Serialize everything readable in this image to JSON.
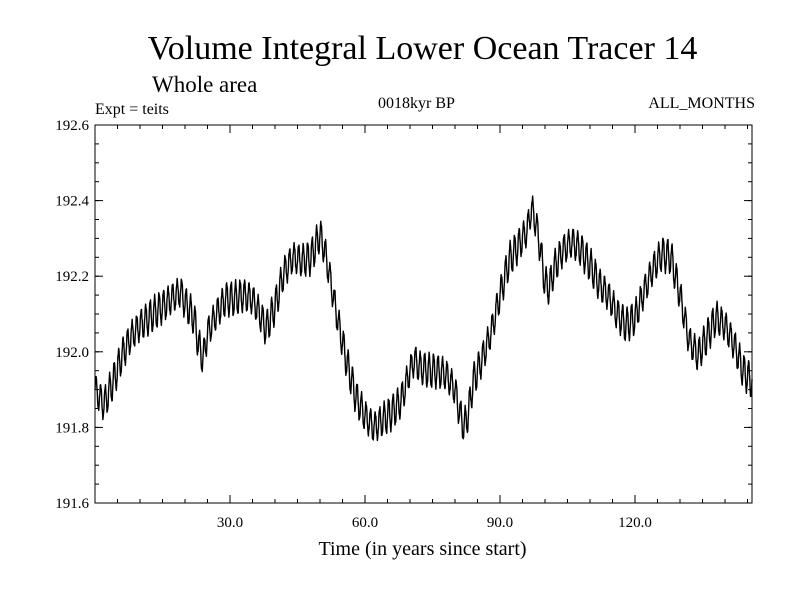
{
  "chart_data": {
    "type": "line",
    "title": "Volume Integral Lower Ocean Tracer 14",
    "subtitle": "Whole area",
    "experiment_label": "Expt = teits",
    "period_label": "0018kyr BP",
    "months_label": "ALL_MONTHS",
    "xlabel": "Time (in years since start)",
    "ylabel": "",
    "xlim": [
      0,
      146
    ],
    "ylim": [
      191.6,
      192.6
    ],
    "x_ticks": [
      30,
      60,
      90,
      120
    ],
    "x_tick_labels": [
      "30.0",
      "60.0",
      "90.0",
      "120.0"
    ],
    "y_ticks": [
      191.6,
      191.8,
      192.0,
      192.2,
      192.4,
      192.6
    ],
    "y_tick_labels": [
      "191.6",
      "191.8",
      "192.0",
      "192.2",
      "192.4",
      "192.6"
    ],
    "grid": false,
    "seasonal_cycle_amplitude": 0.04,
    "series": [
      {
        "name": "Volume Integral Lower Ocean Tracer 14",
        "x": [
          0,
          2,
          4,
          6,
          8,
          10,
          12,
          14,
          16,
          18,
          19,
          20,
          22,
          23,
          24,
          25,
          27,
          29,
          31,
          33,
          35,
          37,
          38,
          40,
          42,
          44,
          46,
          48,
          49,
          50,
          51,
          52,
          54,
          56,
          58,
          60,
          62,
          64,
          66,
          68,
          70,
          71,
          72,
          74,
          76,
          78,
          80,
          81,
          82,
          83,
          84,
          86,
          88,
          90,
          92,
          94,
          96,
          97,
          98,
          99,
          100,
          101,
          102,
          104,
          106,
          108,
          110,
          112,
          114,
          116,
          118,
          120,
          122,
          124,
          126,
          128,
          130,
          132,
          134,
          136,
          138,
          140,
          142,
          144,
          146
        ],
        "y": [
          191.9,
          191.86,
          191.92,
          191.99,
          192.04,
          192.07,
          192.09,
          192.11,
          192.13,
          192.15,
          192.16,
          192.13,
          192.09,
          192.02,
          191.98,
          192.05,
          192.1,
          192.14,
          192.14,
          192.15,
          192.14,
          192.09,
          192.06,
          192.12,
          192.21,
          192.25,
          192.24,
          192.25,
          192.28,
          192.31,
          192.27,
          192.21,
          192.08,
          191.97,
          191.88,
          191.83,
          191.8,
          191.82,
          191.84,
          191.87,
          191.95,
          191.98,
          191.96,
          191.95,
          191.95,
          191.94,
          191.9,
          191.84,
          191.8,
          191.84,
          191.92,
          191.98,
          192.05,
          192.15,
          192.24,
          192.28,
          192.32,
          192.38,
          192.34,
          192.27,
          192.18,
          192.17,
          192.22,
          192.27,
          192.29,
          192.27,
          192.23,
          192.18,
          192.15,
          192.1,
          192.07,
          192.09,
          192.16,
          192.22,
          192.26,
          192.25,
          192.15,
          192.03,
          191.99,
          192.04,
          192.09,
          192.07,
          192.02,
          191.95,
          191.92
        ]
      }
    ]
  }
}
